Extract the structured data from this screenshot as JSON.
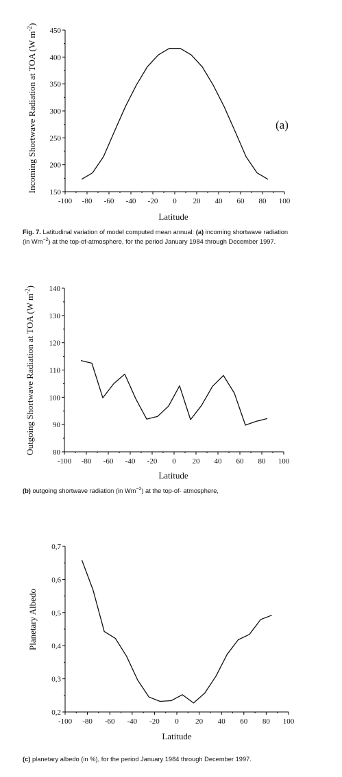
{
  "chart_data": [
    {
      "type": "line",
      "panel_label": "(a)",
      "xlabel": "Latitude",
      "ylabel": "Incoming Shortwave Radiation at TOA (W m",
      "ylabel_sup": "-2",
      "ylabel_close": ")",
      "xlim": [
        -100,
        100
      ],
      "ylim": [
        150,
        450
      ],
      "xticks": [
        "-100",
        "-80",
        "-60",
        "-40",
        "-20",
        "0",
        "20",
        "40",
        "60",
        "80",
        "100"
      ],
      "yticks": [
        "150",
        "200",
        "250",
        "300",
        "350",
        "400",
        "450"
      ],
      "series": [
        {
          "x": [
            -85,
            -75,
            -65,
            -55,
            -45,
            -35,
            -25,
            -15,
            -5,
            5,
            15,
            25,
            35,
            45,
            55,
            65,
            75,
            85
          ],
          "y": [
            173,
            185,
            215,
            262,
            308,
            348,
            382,
            404,
            416,
            416,
            404,
            382,
            348,
            308,
            262,
            215,
            185,
            173
          ]
        }
      ]
    },
    {
      "type": "line",
      "xlabel": "Latitude",
      "ylabel": "Outgoing Shortwave Radiation at TOA (W m",
      "ylabel_sup": "-2",
      "ylabel_close": ")",
      "xlim": [
        -100,
        100
      ],
      "ylim": [
        80,
        140
      ],
      "xticks": [
        "-100",
        "-80",
        "-60",
        "-40",
        "-20",
        "0",
        "20",
        "40",
        "60",
        "80",
        "100"
      ],
      "yticks": [
        "80",
        "90",
        "100",
        "110",
        "120",
        "130",
        "140"
      ],
      "series": [
        {
          "x": [
            -85,
            -75,
            -65,
            -55,
            -45,
            -35,
            -25,
            -15,
            -5,
            5,
            15,
            25,
            35,
            45,
            55,
            65,
            75,
            85
          ],
          "y": [
            113.5,
            112.5,
            99.8,
            105.0,
            108.5,
            99.5,
            92.0,
            93.0,
            96.8,
            104.2,
            91.8,
            97.0,
            104.0,
            108.0,
            101.5,
            89.8,
            91.2,
            92.2
          ]
        }
      ]
    },
    {
      "type": "line",
      "xlabel": "Latitude",
      "ylabel": "Planetary Albedo",
      "xlim": [
        -100,
        100
      ],
      "ylim": [
        0.2,
        0.7
      ],
      "xticks": [
        "-100",
        "-80",
        "-60",
        "-40",
        "-20",
        "0",
        "20",
        "40",
        "60",
        "80",
        "100"
      ],
      "yticks": [
        "0,2",
        "0,3",
        "0,4",
        "0,5",
        "0,6",
        "0,7"
      ],
      "series": [
        {
          "x": [
            -85,
            -75,
            -65,
            -55,
            -45,
            -35,
            -25,
            -15,
            -5,
            5,
            15,
            25,
            35,
            45,
            55,
            65,
            75,
            85
          ],
          "y": [
            0.658,
            0.568,
            0.443,
            0.422,
            0.368,
            0.296,
            0.245,
            0.232,
            0.234,
            0.252,
            0.227,
            0.257,
            0.308,
            0.374,
            0.418,
            0.434,
            0.479,
            0.492
          ]
        }
      ]
    }
  ],
  "captions": {
    "fig7_label": "Fig. 7.",
    "fig7_text_1": " Latitudinal variation of model computed mean annual: ",
    "fig7_a": "(a)",
    "fig7_text_2": " incoming shortwave radiation",
    "fig7_line2_pre": "(in Wm",
    "fig7_line2_sup": "−2",
    "fig7_line2_post": ") at the top-of-atmosphere, for the period January 1984 through December 1997.",
    "b_label": "(b)",
    "b_pre": " outgoing shortwave radiation (in Wm",
    "b_sup": "−2",
    "b_post": ") at the top-of- atmosphere,",
    "c_label": "(c)",
    "c_text": " planetary albedo (in %), for the period January 1984 through December 1997."
  }
}
